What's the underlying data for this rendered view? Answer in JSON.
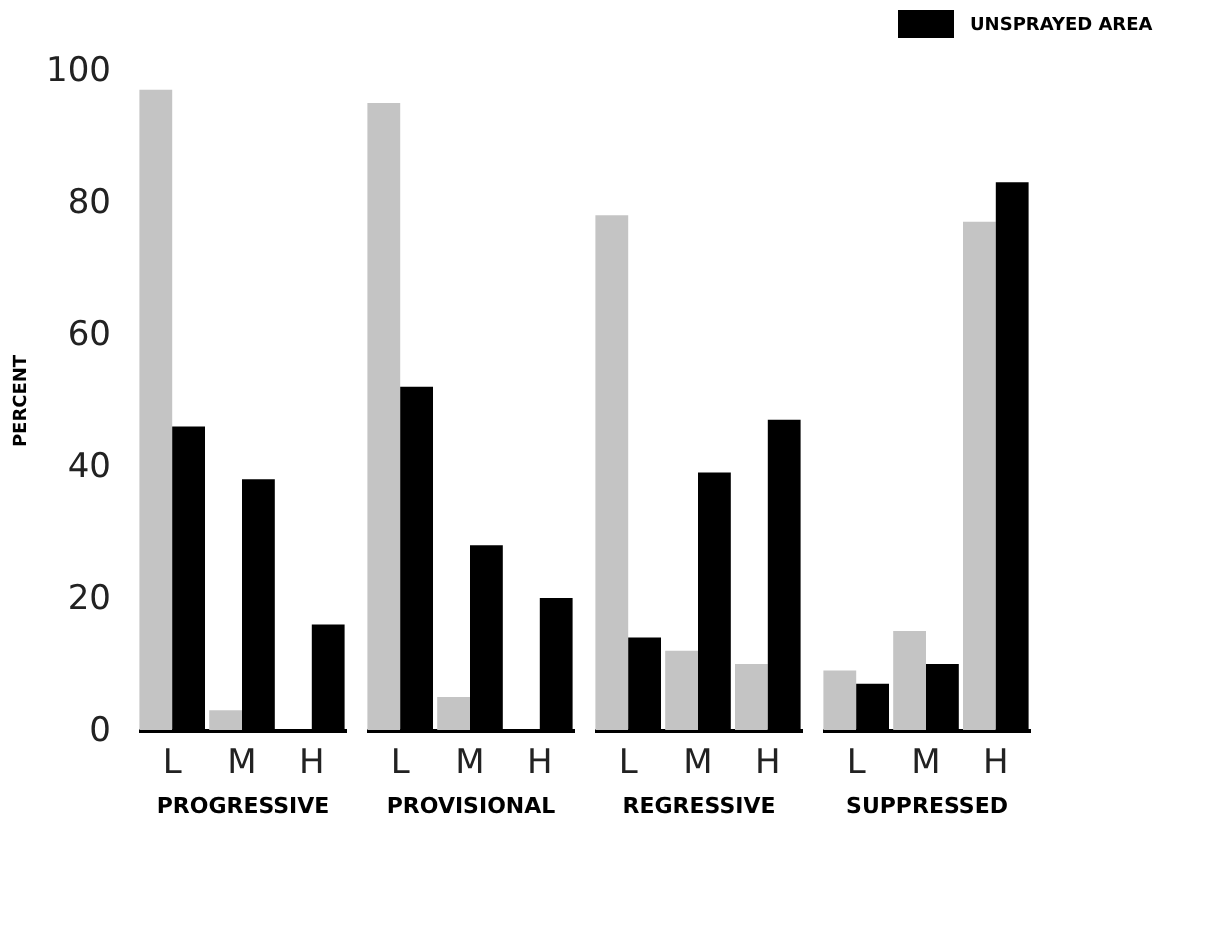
{
  "chart_data": [
    {
      "type": "bar",
      "xlabel": "PROGRESSIVE",
      "ylabel": "PERCENT",
      "categories": [
        "L",
        "M",
        "H"
      ],
      "series": [
        {
          "color": "#c4c4c4",
          "values": [
            97,
            3,
            0
          ]
        },
        {
          "color": "#000000",
          "values": [
            46,
            38,
            16
          ]
        }
      ],
      "ylim": [
        0,
        100
      ],
      "yticks": [
        0,
        20,
        40,
        60,
        80,
        100
      ]
    },
    {
      "type": "bar",
      "xlabel": "PROVISIONAL",
      "categories": [
        "L",
        "M",
        "H"
      ],
      "series": [
        {
          "color": "#c4c4c4",
          "values": [
            95,
            5,
            0
          ]
        },
        {
          "color": "#000000",
          "values": [
            52,
            28,
            20
          ]
        }
      ],
      "ylim": [
        0,
        100
      ],
      "yticks": [
        0,
        20,
        40,
        60,
        80,
        100
      ],
      "tick_labels": "x"
    },
    {
      "type": "bar",
      "xlabel": "REGRESSIVE",
      "categories": [
        "L",
        "M",
        "H"
      ],
      "series": [
        {
          "color": "#c4c4c4",
          "values": [
            78,
            12,
            10
          ]
        },
        {
          "color": "#000000",
          "values": [
            14,
            39,
            47
          ]
        }
      ],
      "ylim": [
        0,
        100
      ],
      "yticks": [
        0,
        20,
        40,
        60,
        80,
        100
      ],
      "tick_labels": "x"
    },
    {
      "type": "bar",
      "xlabel": "SUPPRESSED",
      "categories": [
        "L",
        "M",
        "H"
      ],
      "series": [
        {
          "color": "#c4c4c4",
          "values": [
            9,
            15,
            77
          ]
        },
        {
          "name": "UNSPRAYED AREA",
          "color": "#000000",
          "values": [
            7,
            10,
            83
          ]
        }
      ],
      "ylim": [
        0,
        100
      ],
      "yticks": [
        0,
        20,
        40,
        60,
        80,
        100
      ],
      "tick_labels": "x",
      "legend": "top right"
    }
  ]
}
